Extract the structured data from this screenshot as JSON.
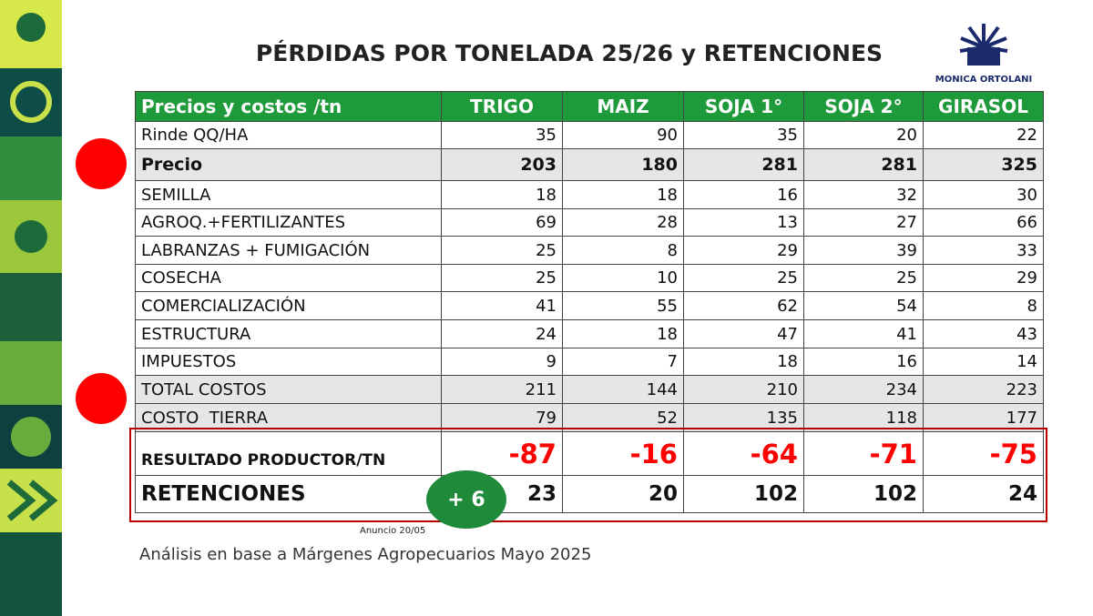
{
  "header": {
    "title": "PÉRDIDAS POR TONELADA 25/26 y RETENCIONES",
    "logo": "MONICA ORTOLANI"
  },
  "table": {
    "columns": [
      "Precios y costos /tn",
      "TRIGO",
      "MAIZ",
      "SOJA 1°",
      "SOJA 2°",
      "GIRASOL"
    ],
    "rows": [
      [
        "Rinde QQ/HA",
        35,
        90,
        35,
        20,
        22
      ],
      [
        "Precio",
        203,
        180,
        281,
        281,
        325
      ],
      [
        "SEMILLA",
        18,
        18,
        16,
        32,
        30
      ],
      [
        "AGROQ.+FERTILIZANTES",
        69,
        28,
        13,
        27,
        66
      ],
      [
        "LABRANZAS + FUMIGACIÓN",
        25,
        8,
        29,
        39,
        33
      ],
      [
        "COSECHA",
        25,
        10,
        25,
        25,
        29
      ],
      [
        "COMERCIALIZACIÓN",
        41,
        55,
        62,
        54,
        8
      ],
      [
        "ESTRUCTURA",
        24,
        18,
        47,
        41,
        43
      ],
      [
        "IMPUESTOS",
        9,
        7,
        18,
        16,
        14
      ],
      [
        "TOTAL COSTOS",
        211,
        144,
        210,
        234,
        223
      ],
      [
        "COSTO  TIERRA",
        79,
        52,
        135,
        118,
        177
      ],
      [
        "RESULTADO PRODUCTOR/TN",
        -87,
        -16,
        -64,
        -71,
        -75
      ],
      [
        "RETENCIONES",
        23,
        20,
        102,
        102,
        24
      ]
    ]
  },
  "badge": "+ 6",
  "note": "Anuncio 20/05",
  "footer": "Análisis en base a Márgenes Agropecuarios Mayo 2025"
}
